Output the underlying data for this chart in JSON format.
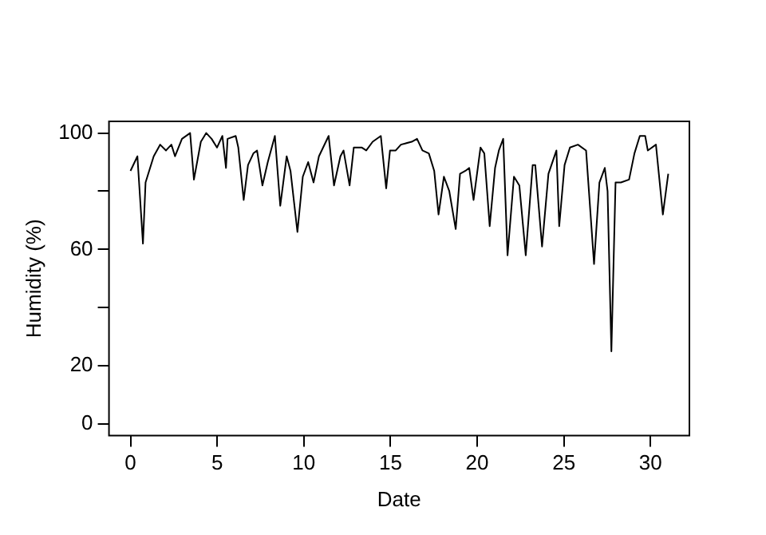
{
  "chart_data": {
    "type": "line",
    "xlabel": "Date",
    "ylabel": "Humidity (%)",
    "x": [
      0,
      0.4,
      0.72,
      0.87,
      1.34,
      1.71,
      2.05,
      2.36,
      2.57,
      2.97,
      3.44,
      3.66,
      4.06,
      4.37,
      4.68,
      4.99,
      5.3,
      5.51,
      5.6,
      6.07,
      6.22,
      6.53,
      6.78,
      7.09,
      7.3,
      7.61,
      7.92,
      8.33,
      8.64,
      9.01,
      9.23,
      9.63,
      9.94,
      10.25,
      10.56,
      10.87,
      11.43,
      11.74,
      12.11,
      12.29,
      12.64,
      12.88,
      13.35,
      13.6,
      13.97,
      14.44,
      14.75,
      14.97,
      15.3,
      15.6,
      16.22,
      16.53,
      16.84,
      17.21,
      17.52,
      17.77,
      18.08,
      18.39,
      18.76,
      19.01,
      19.32,
      19.54,
      19.79,
      20.19,
      20.41,
      20.72,
      21.03,
      21.25,
      21.5,
      21.75,
      22.12,
      22.43,
      22.8,
      23.2,
      23.35,
      23.74,
      24.11,
      24.57,
      24.73,
      25.04,
      25.35,
      25.81,
      26.28,
      26.74,
      27.05,
      27.36,
      27.52,
      27.74,
      27.98,
      28.29,
      28.76,
      29.07,
      29.38,
      29.69,
      29.84,
      30.31,
      30.71,
      31.02
    ],
    "series": [
      {
        "color": "#000000",
        "values": [
          87,
          92,
          62,
          83,
          92,
          96,
          94,
          96,
          92,
          98,
          100,
          84,
          97,
          100,
          98,
          95,
          99,
          88,
          98,
          99,
          95,
          77,
          89,
          93,
          94,
          82,
          90,
          99,
          75,
          92,
          87,
          66,
          85,
          90,
          83,
          92,
          99,
          82,
          92,
          94,
          82,
          95,
          95,
          94,
          97,
          99,
          81,
          94,
          94,
          96,
          97,
          98,
          94,
          93,
          87,
          72,
          85,
          80,
          67,
          86,
          87,
          88,
          77,
          95,
          93,
          68,
          88,
          94,
          98,
          58,
          85,
          82,
          58,
          89,
          89,
          61,
          86,
          94,
          68,
          89,
          95,
          96,
          94,
          55,
          83,
          88,
          80,
          25,
          83,
          83,
          84,
          93,
          99,
          99,
          94,
          96,
          72,
          86
        ]
      }
    ],
    "xlim": [
      -1.24,
      32.24
    ],
    "xticks": [
      0,
      5,
      10,
      15,
      20,
      25,
      30
    ],
    "ylim": [
      -4,
      104
    ],
    "yticks": [
      0,
      20,
      {
        "value": 40,
        "label": null
      },
      60,
      {
        "value": 80,
        "label": null
      },
      100
    ],
    "grid": false,
    "legend": false
  }
}
